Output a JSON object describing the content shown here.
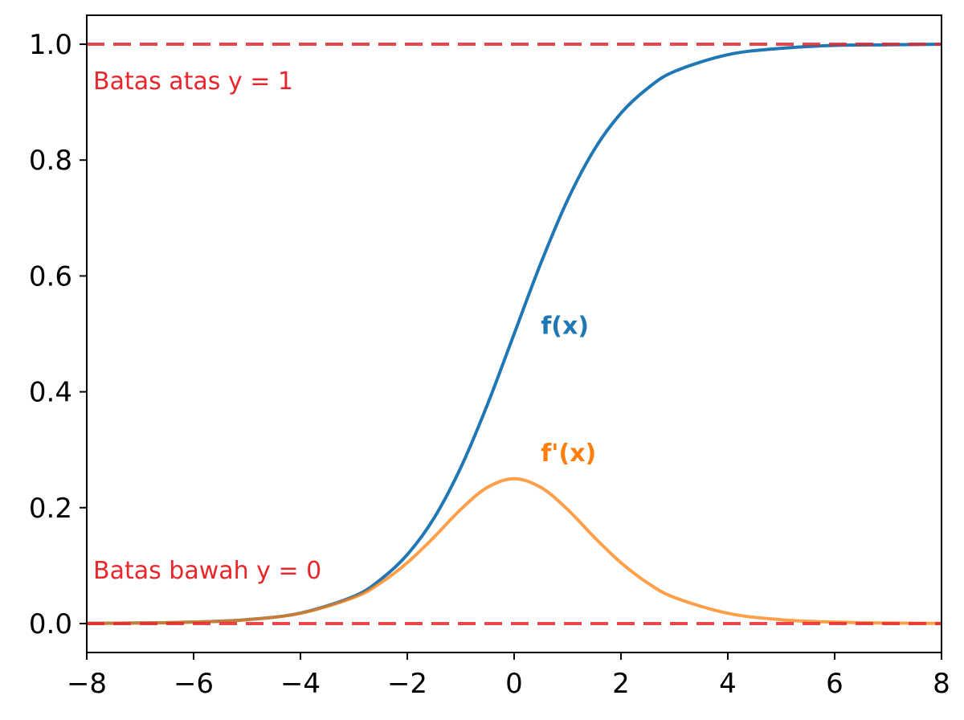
{
  "chart_data": {
    "type": "line",
    "title": "",
    "xlabel": "",
    "ylabel": "",
    "xlim": [
      -8,
      8
    ],
    "ylim": [
      -0.05,
      1.05
    ],
    "x_ticks": [
      "−8",
      "−6",
      "−4",
      "−2",
      "0",
      "2",
      "4",
      "6",
      "8"
    ],
    "x_tick_values": [
      -8,
      -6,
      -4,
      -2,
      0,
      2,
      4,
      6,
      8
    ],
    "y_ticks": [
      "0.0",
      "0.2",
      "0.4",
      "0.6",
      "0.8",
      "1.0"
    ],
    "y_tick_values": [
      0.0,
      0.2,
      0.4,
      0.6,
      0.8,
      1.0
    ],
    "grid": false,
    "series": [
      {
        "name": "f(x)",
        "color": "#1f77b4",
        "x": [
          -8,
          -7,
          -6,
          -5,
          -4,
          -3,
          -2.5,
          -2,
          -1.5,
          -1,
          -0.5,
          0,
          0.5,
          1,
          1.5,
          2,
          2.5,
          3,
          4,
          5,
          6,
          7,
          8
        ],
        "y": [
          0.0003,
          0.0009,
          0.0025,
          0.0067,
          0.018,
          0.047,
          0.076,
          0.119,
          0.182,
          0.269,
          0.378,
          0.5,
          0.622,
          0.731,
          0.818,
          0.881,
          0.924,
          0.953,
          0.982,
          0.993,
          0.998,
          0.999,
          1.0
        ]
      },
      {
        "name": "f'(x)",
        "color": "#ff7f0e",
        "x": [
          -8,
          -7,
          -6,
          -5,
          -4,
          -3,
          -2.5,
          -2,
          -1.5,
          -1,
          -0.5,
          0,
          0.5,
          1,
          1.5,
          2,
          2.5,
          3,
          4,
          5,
          6,
          7,
          8
        ],
        "y": [
          0.0003,
          0.0009,
          0.0025,
          0.0066,
          0.0177,
          0.045,
          0.07,
          0.105,
          0.149,
          0.197,
          0.235,
          0.25,
          0.235,
          0.197,
          0.149,
          0.105,
          0.07,
          0.045,
          0.0177,
          0.0066,
          0.0025,
          0.0009,
          0.0003
        ]
      }
    ],
    "reference_lines": [
      {
        "y": 1.0,
        "label": "Batas atas y = 1",
        "color": "#e8262b"
      },
      {
        "y": 0.0,
        "label": "Batas bawah y = 0",
        "color": "#e8262b"
      }
    ],
    "series_labels": [
      {
        "text": "f(x)",
        "x": 0.5,
        "y": 0.5,
        "color": "#1f77b4"
      },
      {
        "text": "f'(x)",
        "x": 0.5,
        "y": 0.28,
        "color": "#ff7f0e"
      }
    ]
  }
}
